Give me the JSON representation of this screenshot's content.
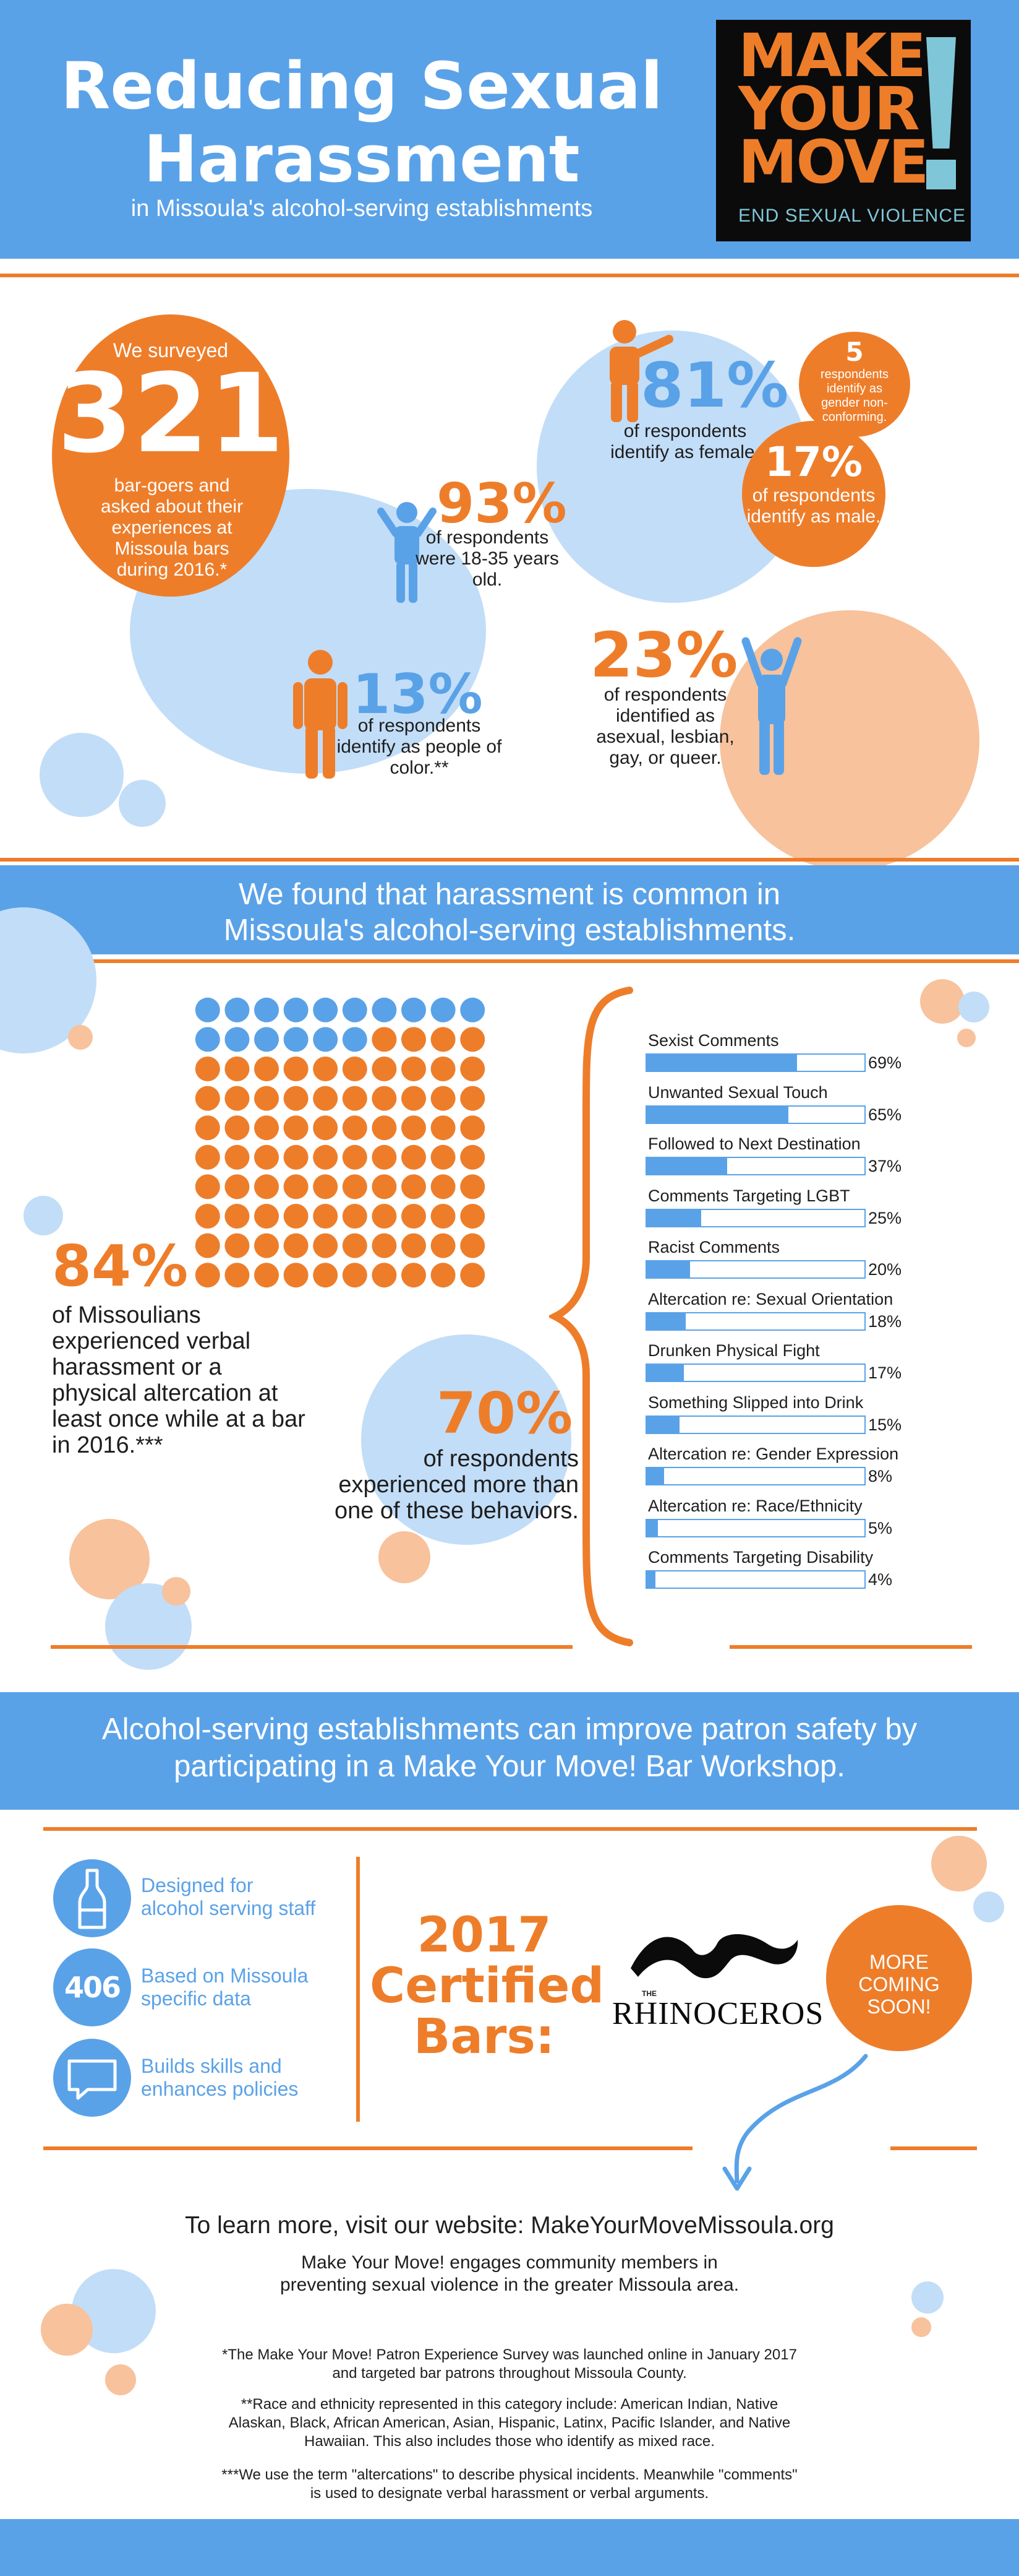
{
  "header": {
    "title_line1": "Reducing Sexual",
    "title_line2": "Harassment",
    "subtitle": "in Missoula's alcohol-serving establishments",
    "logo_line1": "MAKE",
    "logo_line2": "YOUR",
    "logo_line3": "MOVE",
    "logo_tagline": "END SEXUAL VIOLENCE"
  },
  "survey": {
    "intro": "We surveyed",
    "count": "321",
    "description": "bar-goers and asked about their experiences at Missoula bars during 2016.*",
    "age_pct": "93%",
    "age_text": "of respondents were 18-35 years old.",
    "poc_pct": "13%",
    "poc_text": "of respondents identify as people of color.**",
    "female_pct": "81%",
    "female_text": "of respondents identify as female.",
    "gnc_count": "5",
    "gnc_text": "respondents identify as gender non-conforming.",
    "male_pct": "17%",
    "male_text": "of respondents identify as male.",
    "lgbq_pct": "23%",
    "lgbq_text": "of respondents identified as asexual, lesbian, gay, or queer."
  },
  "band1": {
    "line1": "We found that harassment is common in",
    "line2": "Missoula's alcohol-serving establishments."
  },
  "harassment": {
    "pct": "84%",
    "text": "of Missoulians experienced verbal harassment or a physical altercation at least once while at a bar in 2016.***",
    "multi_pct": "70%",
    "multi_text": "of respondents experienced more than one of these behaviors."
  },
  "chart_data": [
    {
      "type": "waffle",
      "total": 100,
      "highlighted": 84,
      "rows": 10,
      "cols": 10,
      "colors": {
        "highlighted": "#ee7d2a",
        "other": "#5aa2e8"
      }
    },
    {
      "type": "bar",
      "orientation": "horizontal",
      "categories": [
        "Sexist Comments",
        "Unwanted Sexual Touch",
        "Followed to Next Destination",
        "Comments Targeting LGBT",
        "Racist Comments",
        "Altercation re: Sexual Orientation",
        "Drunken Physical Fight",
        "Something Slipped into Drink",
        "Altercation re: Gender Expression",
        "Altercation re: Race/Ethnicity",
        "Comments Targeting Disability"
      ],
      "values": [
        69,
        65,
        37,
        25,
        20,
        18,
        17,
        15,
        8,
        5,
        4
      ],
      "value_labels": [
        "69%",
        "65%",
        "37%",
        "25%",
        "20%",
        "18%",
        "17%",
        "15%",
        "8%",
        "5%",
        "4%"
      ],
      "xlim": [
        0,
        100
      ],
      "color": "#5aa2e8"
    }
  ],
  "band2": {
    "line1": "Alcohol-serving establishments can improve patron safety by",
    "line2": "participating in a Make Your Move! Bar Workshop."
  },
  "workshop": {
    "features": [
      {
        "icon": "bottle-icon",
        "line1": "Designed for",
        "line2": "alcohol serving staff"
      },
      {
        "icon": "406-badge",
        "badge_text": "406",
        "line1": "Based on Missoula",
        "line2": "specific data"
      },
      {
        "icon": "speech-bubble-icon",
        "line1": "Builds skills and",
        "line2": "enhances policies"
      }
    ],
    "certified_line1": "2017",
    "certified_line2": "Certified",
    "certified_line3": "Bars:",
    "bar_logo_small": "THE",
    "bar_logo_name": "RHINOCEROS",
    "coming_soon_line1": "MORE",
    "coming_soon_line2": "COMING",
    "coming_soon_line3": "SOON!"
  },
  "footer": {
    "website": "To learn more, visit our website: MakeYourMoveMissoula.org",
    "mission_line1": "Make Your Move! engages community members in",
    "mission_line2": "preventing sexual violence in the greater Missoula area.",
    "note1_line1": "*The Make Your Move! Patron Experience Survey was launched online in January 2017",
    "note1_line2": "and targeted bar patrons throughout Missoula County.",
    "note2_line1": "**Race and ethnicity represented in this category include: American Indian, Native",
    "note2_line2": "Alaskan, Black, African American, Asian, Hispanic, Latinx, Pacific Islander, and Native",
    "note2_line3": "Hawaiian. This also includes those who identify as mixed race.",
    "note3_line1": "***We use the term \"altercations\" to describe physical incidents. Meanwhile \"comments\"",
    "note3_line2": "is used to designate verbal harassment or verbal arguments."
  }
}
